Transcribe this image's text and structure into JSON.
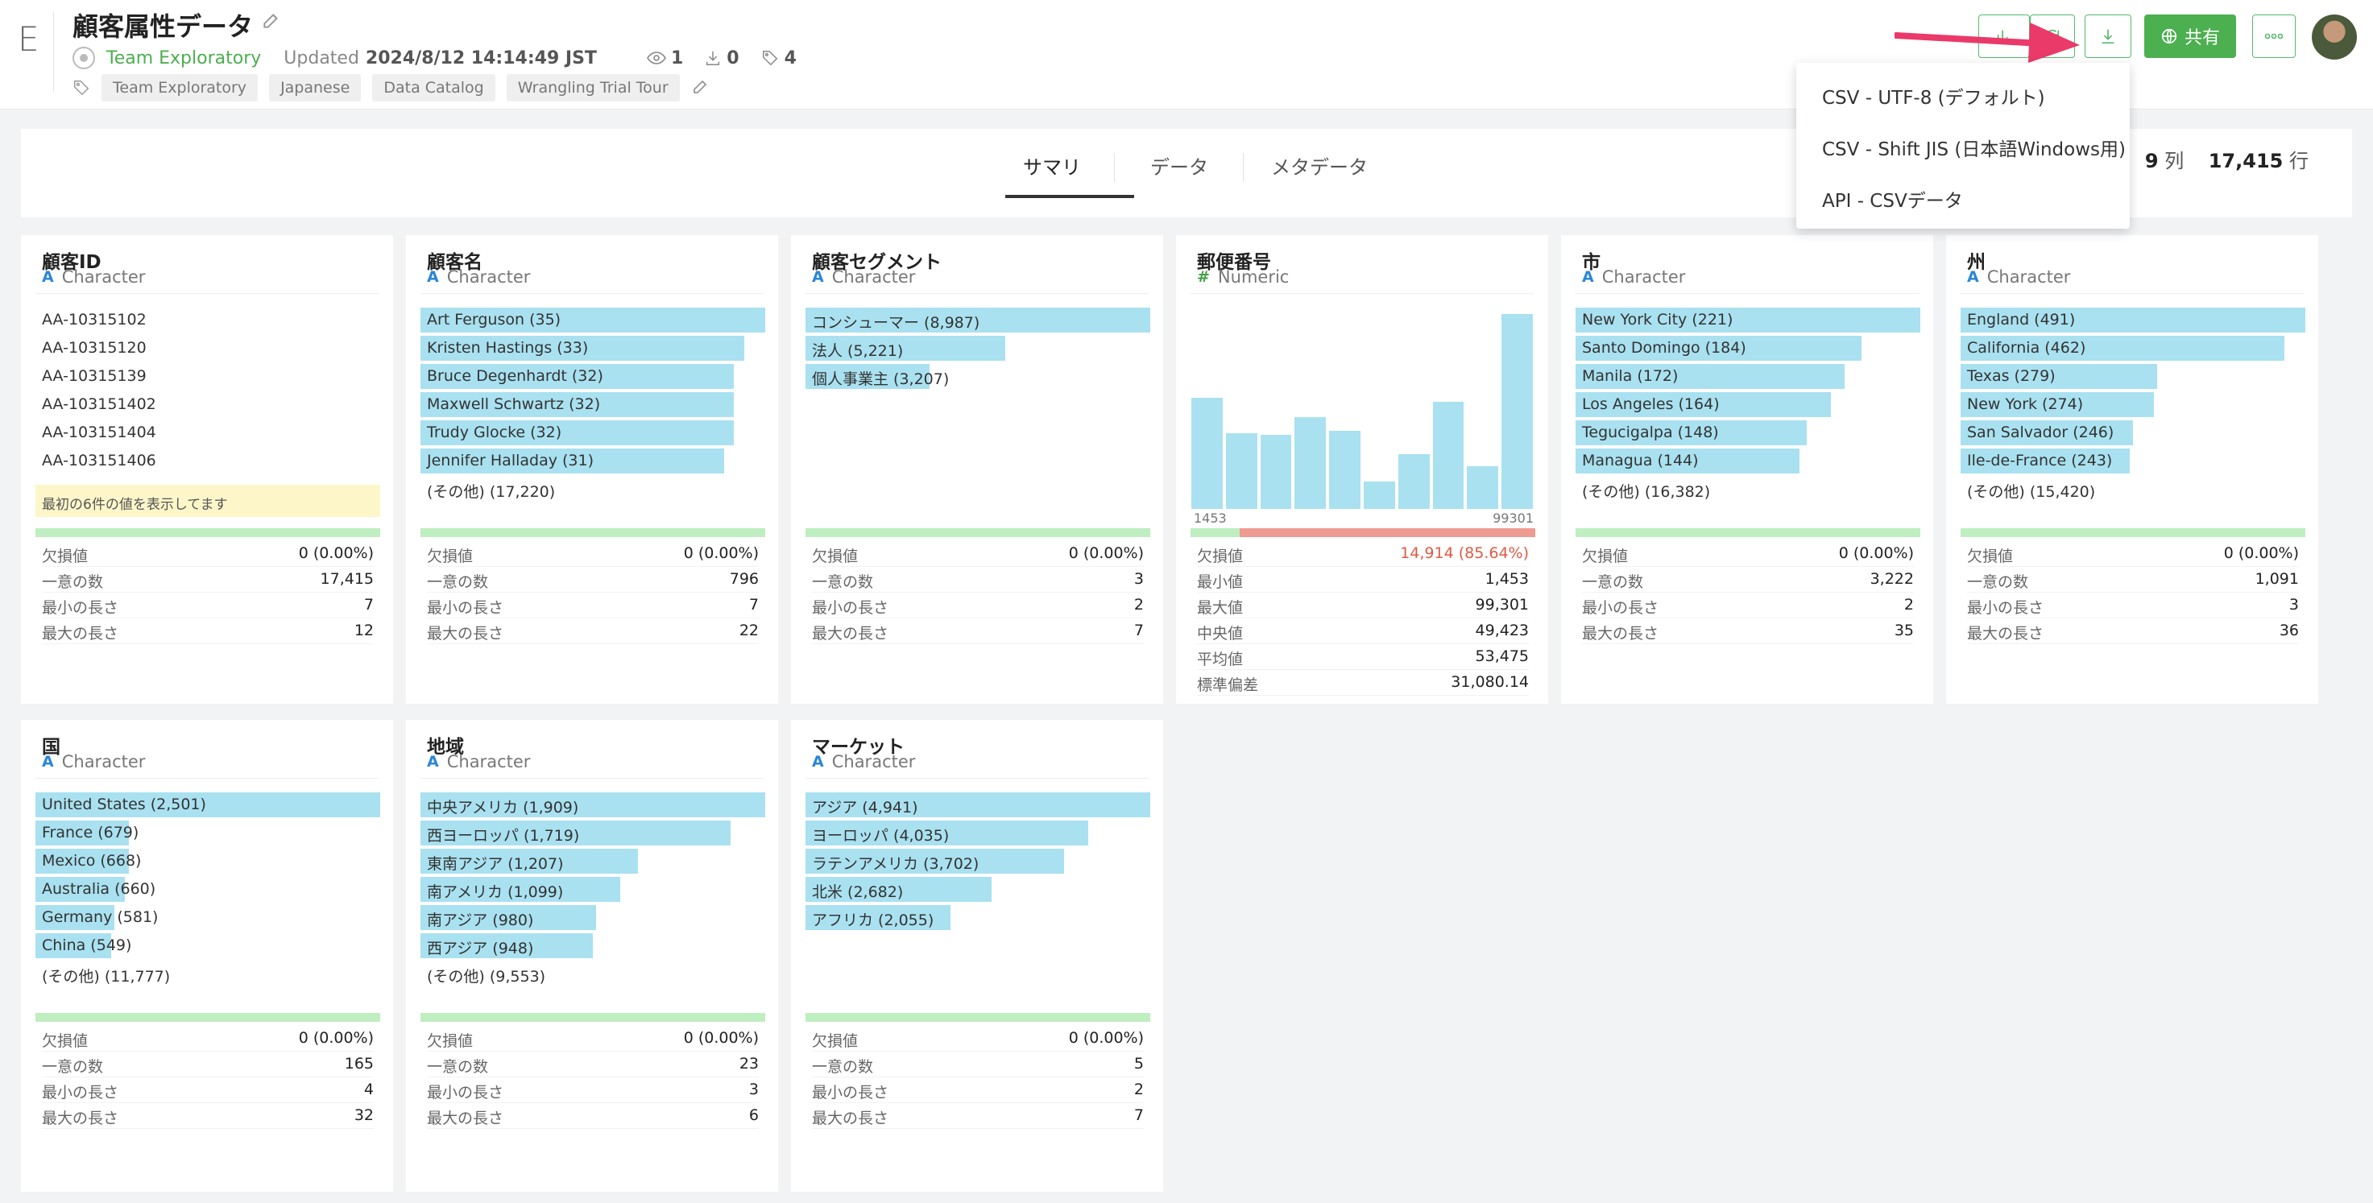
{
  "header": {
    "app_letter": "E",
    "title": "顧客属性データ",
    "team": "Team Exploratory",
    "updated_label": "Updated",
    "updated_time": "2024/8/12 14:14:49 JST",
    "views": "1",
    "downloads": "0",
    "tags_count": "4",
    "tags": [
      "Team Exploratory",
      "Japanese",
      "Data Catalog",
      "Wrangling Trial Tour"
    ],
    "share_label": "共有"
  },
  "tabs": [
    "サマリ",
    "データ",
    "メタデータ"
  ],
  "dims": {
    "cols": "9",
    "cols_unit": "列",
    "rows": "17,415",
    "rows_unit": "行"
  },
  "download_menu": [
    "CSV - UTF-8 (デフォルト)",
    "CSV - Shift JIS (日本語Windows用)",
    "API - CSVデータ"
  ],
  "columns": [
    {
      "name": "顧客ID",
      "type": "Character",
      "values": [
        "AA-10315102",
        "AA-10315120",
        "AA-10315139",
        "AA-103151402",
        "AA-103151404",
        "AA-103151406"
      ],
      "note": "最初の6件の値を表示してます",
      "stats": [
        [
          "欠損値",
          "0 (0.00%)"
        ],
        [
          "一意の数",
          "17,415"
        ],
        [
          "最小の長さ",
          "7"
        ],
        [
          "最大の長さ",
          "12"
        ]
      ]
    },
    {
      "name": "顧客名",
      "type": "Character",
      "bars": [
        [
          "Art Ferguson (35)",
          1.0
        ],
        [
          "Kristen Hastings (33)",
          0.94
        ],
        [
          "Bruce Degenhardt (32)",
          0.91
        ],
        [
          "Maxwell Schwartz (32)",
          0.91
        ],
        [
          "Trudy Glocke (32)",
          0.91
        ],
        [
          "Jennifer Halladay (31)",
          0.88
        ]
      ],
      "other": "(その他) (17,220)",
      "stats": [
        [
          "欠損値",
          "0 (0.00%)"
        ],
        [
          "一意の数",
          "796"
        ],
        [
          "最小の長さ",
          "7"
        ],
        [
          "最大の長さ",
          "22"
        ]
      ]
    },
    {
      "name": "顧客セグメント",
      "type": "Character",
      "bars": [
        [
          "コンシューマー (8,987)",
          1.0
        ],
        [
          "法人 (5,221)",
          0.58
        ],
        [
          "個人事業主 (3,207)",
          0.36
        ]
      ],
      "stats": [
        [
          "欠損値",
          "0 (0.00%)"
        ],
        [
          "一意の数",
          "3"
        ],
        [
          "最小の長さ",
          "2"
        ],
        [
          "最大の長さ",
          "7"
        ]
      ]
    },
    {
      "name": "郵便番号",
      "type": "Numeric",
      "histogram": [
        0.57,
        0.39,
        0.38,
        0.47,
        0.4,
        0.14,
        0.28,
        0.55,
        0.22,
        1.0
      ],
      "hist_min": "1453",
      "hist_max": "99301",
      "missing_ratio": 0.8564,
      "stats": [
        [
          "欠損値",
          "14,914 (85.64%)"
        ],
        [
          "最小値",
          "1,453"
        ],
        [
          "最大値",
          "99,301"
        ],
        [
          "中央値",
          "49,423"
        ],
        [
          "平均値",
          "53,475"
        ],
        [
          "標準偏差",
          "31,080.14"
        ]
      ]
    },
    {
      "name": "市",
      "type": "Character",
      "bars": [
        [
          "New York City (221)",
          1.0
        ],
        [
          "Santo Domingo (184)",
          0.83
        ],
        [
          "Manila (172)",
          0.78
        ],
        [
          "Los Angeles (164)",
          0.74
        ],
        [
          "Tegucigalpa (148)",
          0.67
        ],
        [
          "Managua (144)",
          0.65
        ]
      ],
      "other": "(その他) (16,382)",
      "stats": [
        [
          "欠損値",
          "0 (0.00%)"
        ],
        [
          "一意の数",
          "3,222"
        ],
        [
          "最小の長さ",
          "2"
        ],
        [
          "最大の長さ",
          "35"
        ]
      ]
    },
    {
      "name": "州",
      "type": "Character",
      "bars": [
        [
          "England (491)",
          1.0
        ],
        [
          "California (462)",
          0.94
        ],
        [
          "Texas (279)",
          0.57
        ],
        [
          "New York (274)",
          0.56
        ],
        [
          "San Salvador (246)",
          0.5
        ],
        [
          "Ile-de-France (243)",
          0.49
        ]
      ],
      "other": "(その他) (15,420)",
      "stats": [
        [
          "欠損値",
          "0 (0.00%)"
        ],
        [
          "一意の数",
          "1,091"
        ],
        [
          "最小の長さ",
          "3"
        ],
        [
          "最大の長さ",
          "36"
        ]
      ]
    },
    {
      "name": "国",
      "type": "Character",
      "bars": [
        [
          "United States (2,501)",
          1.0
        ],
        [
          "France (679)",
          0.27
        ],
        [
          "Mexico (668)",
          0.27
        ],
        [
          "Australia (660)",
          0.26
        ],
        [
          "Germany (581)",
          0.23
        ],
        [
          "China (549)",
          0.22
        ]
      ],
      "other": "(その他) (11,777)",
      "stats": [
        [
          "欠損値",
          "0 (0.00%)"
        ],
        [
          "一意の数",
          "165"
        ],
        [
          "最小の長さ",
          "4"
        ],
        [
          "最大の長さ",
          "32"
        ]
      ]
    },
    {
      "name": "地域",
      "type": "Character",
      "bars": [
        [
          "中央アメリカ (1,909)",
          1.0
        ],
        [
          "西ヨーロッパ (1,719)",
          0.9
        ],
        [
          "東南アジア (1,207)",
          0.63
        ],
        [
          "南アメリカ (1,099)",
          0.58
        ],
        [
          "南アジア (980)",
          0.51
        ],
        [
          "西アジア (948)",
          0.5
        ]
      ],
      "other": "(その他) (9,553)",
      "stats": [
        [
          "欠損値",
          "0 (0.00%)"
        ],
        [
          "一意の数",
          "23"
        ],
        [
          "最小の長さ",
          "3"
        ],
        [
          "最大の長さ",
          "6"
        ]
      ]
    },
    {
      "name": "マーケット",
      "type": "Character",
      "bars": [
        [
          "アジア (4,941)",
          1.0
        ],
        [
          "ヨーロッパ (4,035)",
          0.82
        ],
        [
          "ラテンアメリカ (3,702)",
          0.75
        ],
        [
          "北米 (2,682)",
          0.54
        ],
        [
          "アフリカ (2,055)",
          0.42
        ]
      ],
      "stats": [
        [
          "欠損値",
          "0 (0.00%)"
        ],
        [
          "一意の数",
          "5"
        ],
        [
          "最小の長さ",
          "2"
        ],
        [
          "最大の長さ",
          "7"
        ]
      ]
    }
  ]
}
